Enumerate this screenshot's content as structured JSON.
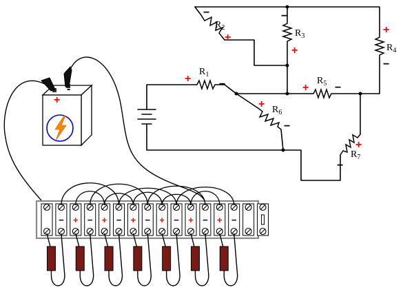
{
  "schematic": {
    "resistors": [
      {
        "id": "R1",
        "letter": "R",
        "sub": "1",
        "polarity_left": "+",
        "polarity_right": "−"
      },
      {
        "id": "R2",
        "letter": "R",
        "sub": "2",
        "polarity_left": "−",
        "polarity_right": "+"
      },
      {
        "id": "R3",
        "letter": "R",
        "sub": "3",
        "polarity_left": "−",
        "polarity_right": "+"
      },
      {
        "id": "R4",
        "letter": "R",
        "sub": "4",
        "polarity_left": "+",
        "polarity_right": "−"
      },
      {
        "id": "R5",
        "letter": "R",
        "sub": "5",
        "polarity_left": "+",
        "polarity_right": "−"
      },
      {
        "id": "R6",
        "letter": "R",
        "sub": "6",
        "polarity_left": "+",
        "polarity_right": "−"
      },
      {
        "id": "R7",
        "letter": "R",
        "sub": "7",
        "polarity_left": "+",
        "polarity_right": "−"
      }
    ]
  },
  "battery": {
    "positive": "+",
    "negative": "-",
    "symbol": "lightning-bolt",
    "colors": {
      "bolt": "#ff8800",
      "ring": "#0000cc"
    }
  },
  "terminal_strip": {
    "terminal_polarity": [
      "",
      "−",
      "+",
      "−",
      "+",
      "−",
      "+",
      "−",
      "+",
      "−",
      "+",
      "−",
      "+",
      "−",
      "",
      ""
    ]
  },
  "colors": {
    "positive": "#ff0000",
    "negative": "#000000",
    "resistor_body": "#7a1a14"
  }
}
